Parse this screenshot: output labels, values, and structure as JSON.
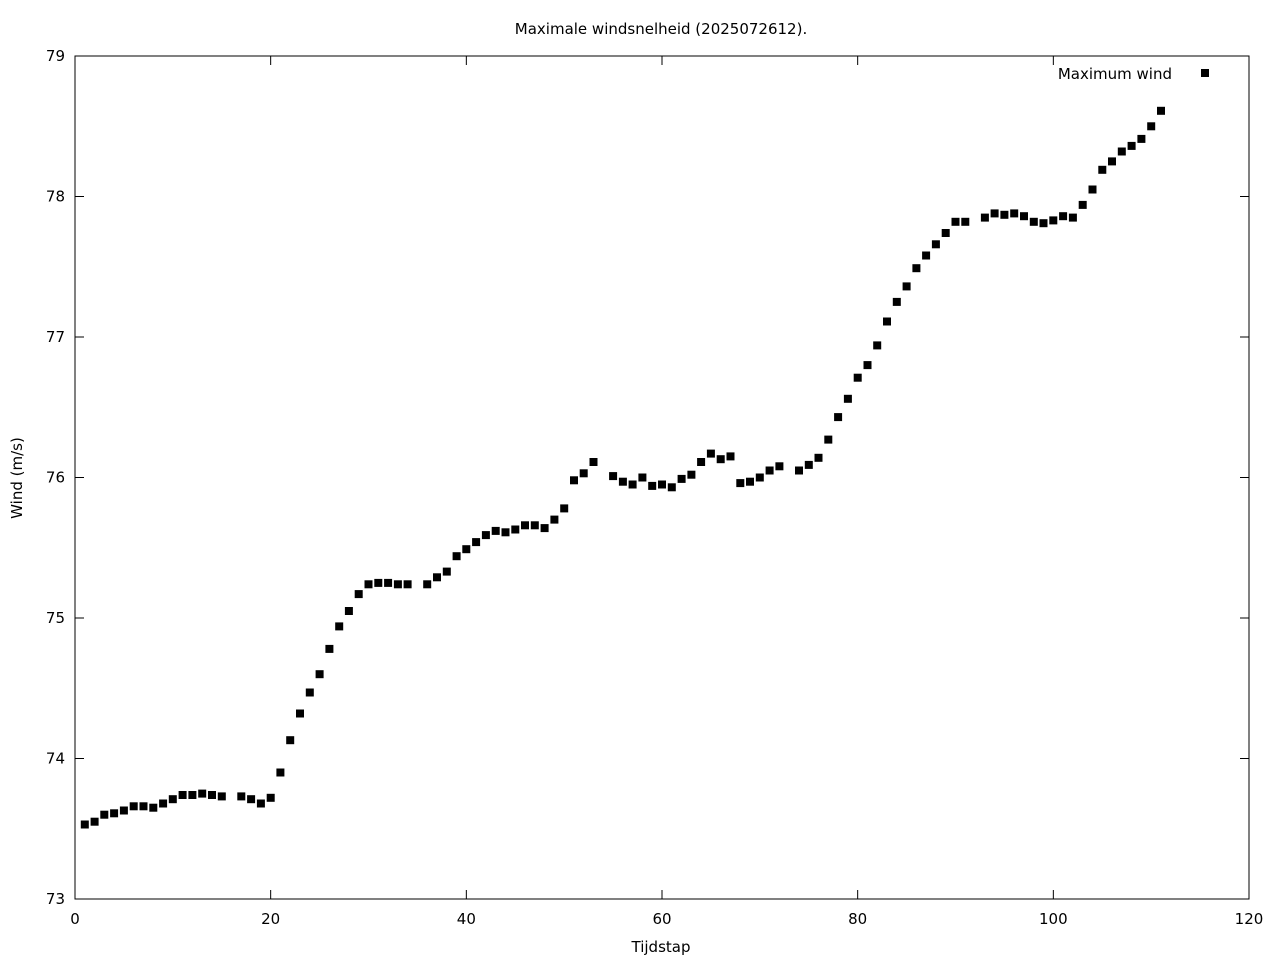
{
  "chart_data": {
    "type": "scatter",
    "title": "Maximale windsnelheid (2025072612).",
    "xlabel": "Tijdstap",
    "ylabel": "Wind (m/s)",
    "xlim": [
      0,
      120
    ],
    "ylim": [
      73,
      79
    ],
    "xticks": [
      0,
      20,
      40,
      60,
      80,
      100,
      120
    ],
    "yticks": [
      73,
      74,
      75,
      76,
      77,
      78,
      79
    ],
    "grid": false,
    "legend_position": "top-right",
    "colors": {
      "marker": "#000000",
      "axis": "#000000"
    },
    "series": [
      {
        "name": "Maximum wind",
        "marker": "square",
        "x": [
          1,
          2,
          3,
          4,
          5,
          6,
          7,
          8,
          9,
          10,
          11,
          12,
          13,
          14,
          15,
          17,
          18,
          19,
          20,
          21,
          22,
          23,
          24,
          25,
          26,
          27,
          28,
          29,
          30,
          31,
          32,
          33,
          34,
          36,
          37,
          38,
          39,
          40,
          41,
          42,
          43,
          44,
          45,
          46,
          47,
          48,
          49,
          50,
          51,
          52,
          53,
          55,
          56,
          57,
          58,
          59,
          60,
          61,
          62,
          63,
          64,
          65,
          66,
          67,
          68,
          69,
          70,
          71,
          72,
          74,
          75,
          76,
          77,
          78,
          79,
          80,
          81,
          82,
          83,
          84,
          85,
          86,
          87,
          88,
          89,
          90,
          91,
          93,
          94,
          95,
          96,
          97,
          98,
          99,
          100,
          101,
          102,
          103,
          104,
          105,
          106,
          107,
          108,
          109,
          110,
          111
        ],
        "y": [
          73.53,
          73.55,
          73.6,
          73.61,
          73.63,
          73.66,
          73.66,
          73.65,
          73.68,
          73.71,
          73.74,
          73.74,
          73.75,
          73.74,
          73.73,
          73.73,
          73.71,
          73.68,
          73.72,
          73.9,
          74.13,
          74.32,
          74.47,
          74.6,
          74.78,
          74.94,
          75.05,
          75.17,
          75.24,
          75.25,
          75.25,
          75.24,
          75.24,
          75.24,
          75.29,
          75.33,
          75.44,
          75.49,
          75.54,
          75.59,
          75.62,
          75.61,
          75.63,
          75.66,
          75.66,
          75.64,
          75.7,
          75.78,
          75.98,
          76.03,
          76.11,
          76.01,
          75.97,
          75.95,
          76.0,
          75.94,
          75.95,
          75.93,
          75.99,
          76.02,
          76.11,
          76.17,
          76.13,
          76.15,
          75.96,
          75.97,
          76.0,
          76.05,
          76.08,
          76.05,
          76.09,
          76.14,
          76.27,
          76.43,
          76.56,
          76.71,
          76.8,
          76.94,
          77.11,
          77.25,
          77.36,
          77.49,
          77.58,
          77.66,
          77.74,
          77.82,
          77.82,
          77.85,
          77.88,
          77.87,
          77.88,
          77.86,
          77.82,
          77.81,
          77.83,
          77.86,
          77.85,
          77.94,
          78.05,
          78.19,
          78.25,
          78.32,
          78.36,
          78.41,
          78.5,
          78.61
        ]
      }
    ]
  }
}
